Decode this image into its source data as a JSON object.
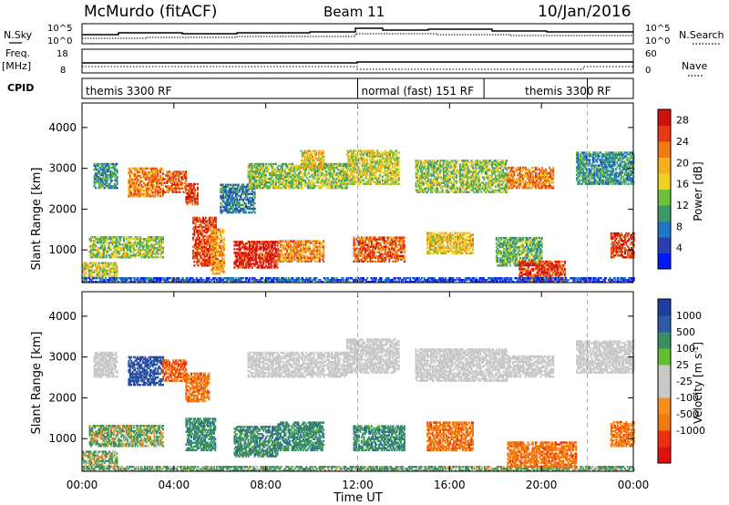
{
  "header": {
    "station": "McMurdo (fitACF)",
    "beam": "Beam 11",
    "date": "10/Jan/2016"
  },
  "left_labels": {
    "nsky": "N.Sky",
    "freq": "Freq.",
    "mhz": "[MHz]",
    "cpid": "CPID"
  },
  "right_labels": {
    "nsearch": "N.Search",
    "nave": "Nave"
  },
  "aux_ticks": {
    "noise_left_top": "10^5",
    "noise_left_bottom": "10^0",
    "noise_right_top": "10^5",
    "noise_right_bottom": "10^0",
    "freq_top": "18",
    "freq_bottom": "8",
    "nave_top": "60",
    "nave_bottom": "0"
  },
  "cpid_segments": [
    {
      "label": "themis 3300 RF",
      "start": 0,
      "end": 12
    },
    {
      "label": "normal (fast) 151 RF",
      "start": 12,
      "end": 17.5
    },
    {
      "label": "themis 3300 RF",
      "start": 17.5,
      "end": 22
    }
  ],
  "colors": {
    "power": [
      "#0018ff",
      "#2a3fb0",
      "#1f77c8",
      "#3a9a6a",
      "#6ebf3c",
      "#f0d020",
      "#f5b020",
      "#f07a10",
      "#e63a10",
      "#d21010"
    ],
    "velocity": [
      "#e01010",
      "#ee3010",
      "#f07a10",
      "#f59020",
      "#c8c8c8",
      "#c8c8c8",
      "#62c030",
      "#3a8f62",
      "#2e5aa8",
      "#1f3fa0"
    ],
    "ground_scatter": "#c8c8c8"
  },
  "chart_data": [
    {
      "type": "heatmap",
      "title": "",
      "xlabel": "Time UT",
      "ylabel": "Slant Range [km]",
      "xlim": [
        0,
        24
      ],
      "ylim": [
        200,
        4600
      ],
      "x_ticks": [
        "00:00",
        "04:00",
        "08:00",
        "12:00",
        "16:00",
        "20:00",
        "00:00"
      ],
      "y_ticks": [
        "1000",
        "2000",
        "3000",
        "4000"
      ],
      "colorbar": {
        "label": "Power [dB]",
        "ticks": [
          "4",
          "8",
          "12",
          "16",
          "20",
          "24",
          "28"
        ],
        "min": 0,
        "max": 30
      },
      "scatter_regions": [
        {
          "t": [
            0.0,
            1.5
          ],
          "r": [
            300,
            700
          ],
          "v": 16
        },
        {
          "t": [
            0.0,
            12.0
          ],
          "r": [
            200,
            320
          ],
          "v": 6
        },
        {
          "t": [
            0.3,
            3.5
          ],
          "r": [
            800,
            1300
          ],
          "v": 14
        },
        {
          "t": [
            0.5,
            1.5
          ],
          "r": [
            2500,
            3100
          ],
          "v": 10
        },
        {
          "t": [
            2.0,
            3.5
          ],
          "r": [
            2300,
            3000
          ],
          "v": 22
        },
        {
          "t": [
            3.5,
            4.5
          ],
          "r": [
            2400,
            2900
          ],
          "v": 24
        },
        {
          "t": [
            4.5,
            5.0
          ],
          "r": [
            2100,
            2600
          ],
          "v": 26
        },
        {
          "t": [
            4.8,
            5.8
          ],
          "r": [
            600,
            1800
          ],
          "v": 26
        },
        {
          "t": [
            5.6,
            6.2
          ],
          "r": [
            400,
            1500
          ],
          "v": 20
        },
        {
          "t": [
            6.0,
            7.5
          ],
          "r": [
            1900,
            2600
          ],
          "v": 8
        },
        {
          "t": [
            6.6,
            8.5
          ],
          "r": [
            550,
            1200
          ],
          "v": 28
        },
        {
          "t": [
            8.5,
            10.5
          ],
          "r": [
            700,
            1200
          ],
          "v": 22
        },
        {
          "t": [
            7.2,
            11.5
          ],
          "r": [
            2500,
            3100
          ],
          "v": 14
        },
        {
          "t": [
            9.5,
            10.5
          ],
          "r": [
            3000,
            3450
          ],
          "v": 18
        },
        {
          "t": [
            11.8,
            14.0
          ],
          "r": [
            700,
            1300
          ],
          "v": 24
        },
        {
          "t": [
            11.5,
            13.8
          ],
          "r": [
            2600,
            3450
          ],
          "v": 16
        },
        {
          "t": [
            15.0,
            17.0
          ],
          "r": [
            900,
            1400
          ],
          "v": 18
        },
        {
          "t": [
            14.5,
            18.5
          ],
          "r": [
            2400,
            3200
          ],
          "v": 14
        },
        {
          "t": [
            18.0,
            20.0
          ],
          "r": [
            600,
            1300
          ],
          "v": 12
        },
        {
          "t": [
            18.5,
            20.5
          ],
          "r": [
            2500,
            3000
          ],
          "v": 22
        },
        {
          "t": [
            19.0,
            21.0
          ],
          "r": [
            200,
            700
          ],
          "v": 26
        },
        {
          "t": [
            21.5,
            24.0
          ],
          "r": [
            2600,
            3400
          ],
          "v": 10
        },
        {
          "t": [
            23.0,
            24.0
          ],
          "r": [
            800,
            1400
          ],
          "v": 26
        },
        {
          "t": [
            12.0,
            24.0
          ],
          "r": [
            200,
            320
          ],
          "v": 4
        }
      ]
    },
    {
      "type": "heatmap",
      "title": "",
      "xlabel": "Time UT",
      "ylabel": "Slant Range [km]",
      "xlim": [
        0,
        24
      ],
      "ylim": [
        200,
        4600
      ],
      "x_ticks": [
        "00:00",
        "04:00",
        "08:00",
        "12:00",
        "16:00",
        "20:00",
        "00:00"
      ],
      "y_ticks": [
        "1000",
        "2000",
        "3000",
        "4000"
      ],
      "colorbar": {
        "label": "Velocity [m s^-1]",
        "ticks": [
          "1000",
          "500",
          "100",
          "25",
          "-25",
          "-100",
          "-500",
          "-1000"
        ]
      },
      "scatter_regions": [
        {
          "t": [
            0.0,
            1.5
          ],
          "r": [
            300,
            700
          ],
          "v": 50
        },
        {
          "t": [
            0.0,
            24.0
          ],
          "r": [
            200,
            320
          ],
          "v": 100
        },
        {
          "t": [
            0.3,
            3.5
          ],
          "r": [
            800,
            1300
          ],
          "v": 60
        },
        {
          "t": [
            0.5,
            1.5
          ],
          "r": [
            2500,
            3100
          ],
          "v": 0
        },
        {
          "t": [
            2.0,
            3.5
          ],
          "r": [
            2300,
            3000
          ],
          "v": 700
        },
        {
          "t": [
            3.5,
            4.5
          ],
          "r": [
            2400,
            2900
          ],
          "v": -300
        },
        {
          "t": [
            4.5,
            5.5
          ],
          "r": [
            1900,
            2600
          ],
          "v": -200
        },
        {
          "t": [
            4.5,
            5.8
          ],
          "r": [
            700,
            1500
          ],
          "v": 200
        },
        {
          "t": [
            6.6,
            8.5
          ],
          "r": [
            550,
            1300
          ],
          "v": 200
        },
        {
          "t": [
            8.5,
            10.5
          ],
          "r": [
            700,
            1400
          ],
          "v": 200
        },
        {
          "t": [
            7.2,
            11.5
          ],
          "r": [
            2500,
            3100
          ],
          "v": 0
        },
        {
          "t": [
            11.8,
            14.0
          ],
          "r": [
            700,
            1300
          ],
          "v": 200
        },
        {
          "t": [
            11.5,
            13.8
          ],
          "r": [
            2600,
            3450
          ],
          "v": 0
        },
        {
          "t": [
            15.0,
            17.0
          ],
          "r": [
            700,
            1400
          ],
          "v": -200
        },
        {
          "t": [
            14.5,
            18.5
          ],
          "r": [
            2400,
            3200
          ],
          "v": 0
        },
        {
          "t": [
            18.5,
            21.5
          ],
          "r": [
            300,
            900
          ],
          "v": -200
        },
        {
          "t": [
            18.5,
            20.5
          ],
          "r": [
            2500,
            3000
          ],
          "v": 0
        },
        {
          "t": [
            21.5,
            24.0
          ],
          "r": [
            2600,
            3400
          ],
          "v": 0
        },
        {
          "t": [
            23.0,
            24.0
          ],
          "r": [
            800,
            1400
          ],
          "v": -200
        }
      ]
    }
  ]
}
